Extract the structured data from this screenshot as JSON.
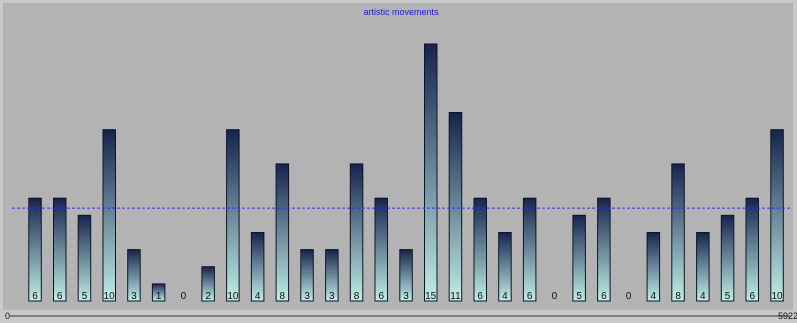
{
  "chart_data": {
    "type": "bar",
    "title": "artistic movements",
    "values": [
      6,
      6,
      5,
      10,
      3,
      1,
      0,
      2,
      10,
      4,
      8,
      3,
      3,
      8,
      6,
      3,
      15,
      11,
      6,
      4,
      6,
      0,
      5,
      6,
      0,
      4,
      8,
      4,
      5,
      6,
      10
    ],
    "x_range_labels": [
      "0",
      "5922"
    ],
    "mean_line": true,
    "colors": {
      "plot_background": "#b3b3b3",
      "page_background": "#c9c9c9",
      "bar_top": "#16234d",
      "bar_bottom": "#bfeee6",
      "bar_stroke": "#0e1524",
      "title": "#1a1aff",
      "mean_line": "#2b2bff"
    }
  }
}
